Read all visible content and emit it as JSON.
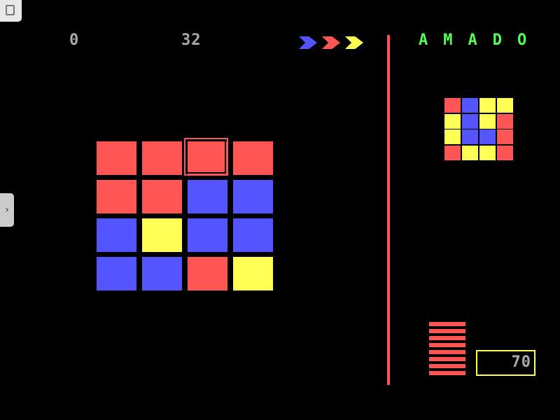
{
  "toolbar": {
    "save_icon": "floppy-disk-icon",
    "side_toggle_icon": "chevron-right-icon"
  },
  "hud": {
    "score": "0",
    "moves": "32",
    "title": "AMADO",
    "title_letters": [
      "A",
      "M",
      "A",
      "D",
      "O"
    ],
    "timer": "70",
    "energy_bars": 8
  },
  "colors": {
    "red": "#ff5555",
    "blue": "#5555ff",
    "yellow": "#ffff55",
    "green": "#55ff55",
    "gray": "#aaaaaa"
  },
  "arrows": [
    "blue",
    "red",
    "yellow"
  ],
  "board": [
    [
      "red",
      "red",
      "red",
      "red"
    ],
    [
      "red",
      "red",
      "blue",
      "blue"
    ],
    [
      "blue",
      "yellow",
      "blue",
      "blue"
    ],
    [
      "blue",
      "blue",
      "red",
      "yellow"
    ]
  ],
  "cursor": {
    "row": 0,
    "col": 2
  },
  "target": [
    [
      "red",
      "blue",
      "yellow",
      "yellow"
    ],
    [
      "yellow",
      "blue",
      "yellow",
      "red"
    ],
    [
      "yellow",
      "blue",
      "blue",
      "red"
    ],
    [
      "red",
      "yellow",
      "yellow",
      "red"
    ]
  ]
}
